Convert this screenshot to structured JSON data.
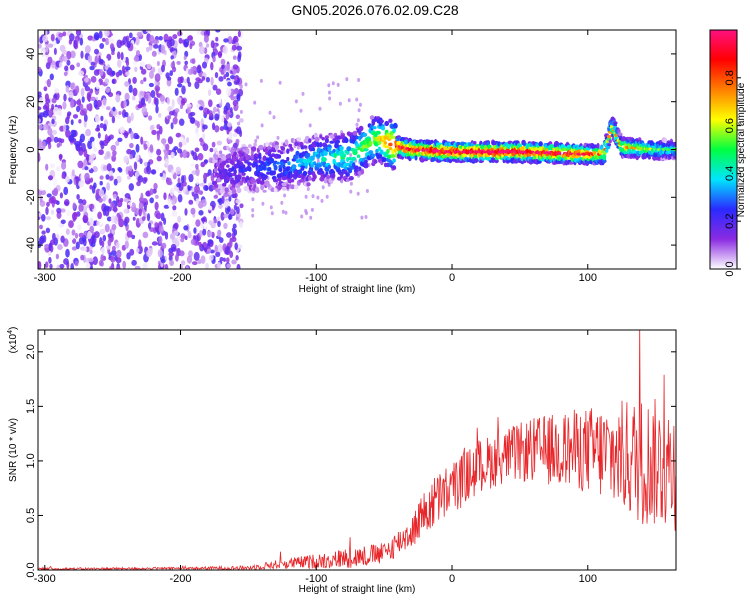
{
  "title": "GN05.2026.076.02.09.C28",
  "chart_data": [
    {
      "type": "heatmap",
      "xlabel": "Height of straight line (km)",
      "ylabel": "Frequency (Hz)",
      "xlim": [
        -305,
        165
      ],
      "ylim": [
        -50,
        50
      ],
      "xticks": [
        -300,
        -200,
        -100,
        0,
        100
      ],
      "yticks": [
        -40,
        -20,
        0,
        20,
        40
      ],
      "colorbar": {
        "label": "Normalized spectral amplitude",
        "range": [
          0,
          1
        ],
        "ticks": [
          "0.0",
          "0.2",
          "0.4",
          "0.6",
          "0.8"
        ],
        "colors": [
          "#ffffff",
          "#8a2be2",
          "#2a2aff",
          "#00e5ff",
          "#00ff40",
          "#ffff00",
          "#ff8000",
          "#ff0000",
          "#ff1080"
        ]
      },
      "ridge": [
        {
          "x": -175,
          "f": -10,
          "a": 0.15
        },
        {
          "x": -150,
          "f": -8,
          "a": 0.25
        },
        {
          "x": -125,
          "f": -7,
          "a": 0.3
        },
        {
          "x": -100,
          "f": -4,
          "a": 0.4
        },
        {
          "x": -75,
          "f": -3,
          "a": 0.5
        },
        {
          "x": -55,
          "f": 5,
          "a": 0.6
        },
        {
          "x": -45,
          "f": 2,
          "a": 0.85
        },
        {
          "x": -30,
          "f": 0,
          "a": 0.9
        },
        {
          "x": 0,
          "f": -1,
          "a": 0.95
        },
        {
          "x": 50,
          "f": -1,
          "a": 0.95
        },
        {
          "x": 100,
          "f": -2,
          "a": 0.85
        },
        {
          "x": 112,
          "f": -2,
          "a": 0.7
        },
        {
          "x": 118,
          "f": 10,
          "a": 0.6
        },
        {
          "x": 125,
          "f": 1,
          "a": 0.7
        },
        {
          "x": 150,
          "f": 0,
          "a": 0.5
        },
        {
          "x": 165,
          "f": 0,
          "a": 0.4
        }
      ]
    },
    {
      "type": "line",
      "xlabel": "Height of straight line (km)",
      "ylabel": "SNR (10 * v/v)",
      "multiplier": "(x10",
      "multiplier_exp": "4",
      "multiplier_close": ")",
      "xlim": [
        -305,
        165
      ],
      "ylim": [
        0,
        2.2
      ],
      "xticks": [
        -300,
        -200,
        -100,
        0,
        100
      ],
      "yticks": [
        "0.0",
        "0.5",
        "1.0",
        "1.5",
        "2.0"
      ],
      "color": "#e8262a",
      "envelope": [
        {
          "x": -305,
          "mean": 0.01,
          "amp": 0.01
        },
        {
          "x": -200,
          "mean": 0.015,
          "amp": 0.01
        },
        {
          "x": -150,
          "mean": 0.02,
          "amp": 0.02
        },
        {
          "x": -130,
          "mean": 0.05,
          "amp": 0.04
        },
        {
          "x": -100,
          "mean": 0.08,
          "amp": 0.07
        },
        {
          "x": -70,
          "mean": 0.12,
          "amp": 0.1
        },
        {
          "x": -50,
          "mean": 0.15,
          "amp": 0.1
        },
        {
          "x": -30,
          "mean": 0.35,
          "amp": 0.15
        },
        {
          "x": -15,
          "mean": 0.6,
          "amp": 0.25
        },
        {
          "x": 0,
          "mean": 0.75,
          "amp": 0.25
        },
        {
          "x": 20,
          "mean": 0.95,
          "amp": 0.25
        },
        {
          "x": 40,
          "mean": 1.05,
          "amp": 0.25
        },
        {
          "x": 60,
          "mean": 1.1,
          "amp": 0.3
        },
        {
          "x": 80,
          "mean": 1.1,
          "amp": 0.35
        },
        {
          "x": 100,
          "mean": 1.1,
          "amp": 0.4
        },
        {
          "x": 120,
          "mean": 1.05,
          "amp": 0.5
        },
        {
          "x": 140,
          "mean": 1.0,
          "amp": 0.6
        },
        {
          "x": 165,
          "mean": 0.95,
          "amp": 0.6
        }
      ]
    }
  ]
}
